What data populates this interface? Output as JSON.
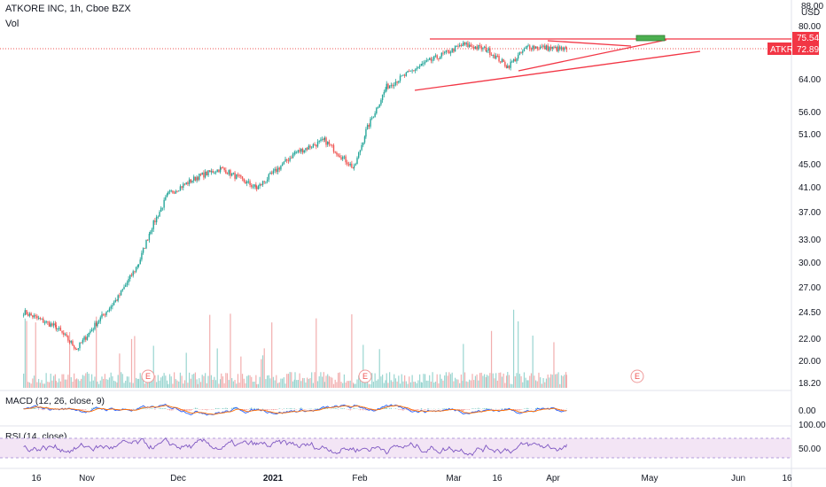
{
  "header": {
    "symbol_line": "ATKORE INC, 1h, Cboe BZX",
    "volume_label": "Vol"
  },
  "price_axis": {
    "top_clipped": "88.00",
    "currency": "USD",
    "ticks": [
      "80.00",
      "64.00",
      "56.00",
      "51.00",
      "45.00",
      "41.00",
      "37.00",
      "33.00",
      "30.00",
      "27.00",
      "24.50",
      "22.00",
      "20.00",
      "18.20"
    ],
    "resistance_tag": "75.54",
    "ticker_tag": "ATKR",
    "last_price_tag": "72.89"
  },
  "time_axis": {
    "labels": [
      "16",
      "Nov",
      "Dec",
      "2021",
      "Feb",
      "Mar",
      "16",
      "Apr",
      "May",
      "Jun",
      "16"
    ]
  },
  "macd": {
    "label": "MACD (12, 26, close, 9)",
    "tick": "0.00"
  },
  "rsi": {
    "label": "RSI (14, close)",
    "ticks": [
      "100.00",
      "50.00"
    ]
  },
  "earnings_marker": "E",
  "colors": {
    "up": "#26a69a",
    "down": "#ef5350",
    "trendline": "#f23645",
    "macd_line": "#2962ff",
    "signal_line": "#ff6d00",
    "rsi_line": "#7e57c2",
    "rsi_band": "#f3e5f5",
    "target_box": "#4caf50"
  },
  "chart_data": {
    "type": "candlestick",
    "title": "ATKORE INC, 1h, Cboe BZX",
    "y_scale": "log",
    "ylim": [
      18.2,
      88
    ],
    "price_path": [
      {
        "date": "2020-10-12",
        "close": 24.5
      },
      {
        "date": "2020-10-23",
        "close": 23.0
      },
      {
        "date": "2020-10-30",
        "close": 21.0
      },
      {
        "date": "2020-11-06",
        "close": 23.5
      },
      {
        "date": "2020-11-13",
        "close": 26.0
      },
      {
        "date": "2020-11-20",
        "close": 30.0
      },
      {
        "date": "2020-11-24",
        "close": 34.5
      },
      {
        "date": "2020-11-30",
        "close": 40.0
      },
      {
        "date": "2020-12-10",
        "close": 43.0
      },
      {
        "date": "2020-12-18",
        "close": 44.5
      },
      {
        "date": "2020-12-30",
        "close": 41.0
      },
      {
        "date": "2021-01-12",
        "close": 47.5
      },
      {
        "date": "2021-01-22",
        "close": 50.0
      },
      {
        "date": "2021-02-01",
        "close": 44.5
      },
      {
        "date": "2021-02-05",
        "close": 52.0
      },
      {
        "date": "2021-02-12",
        "close": 62.5
      },
      {
        "date": "2021-02-24",
        "close": 68.5
      },
      {
        "date": "2021-03-10",
        "close": 74.5
      },
      {
        "date": "2021-03-18",
        "close": 73.0
      },
      {
        "date": "2021-03-25",
        "close": 68.0
      },
      {
        "date": "2021-04-01",
        "close": 74.0
      },
      {
        "date": "2021-04-14",
        "close": 72.89
      }
    ],
    "annotations": {
      "resistance_level": 75.54,
      "last_price": 72.89,
      "earnings_dates": [
        "2020-11-20",
        "2021-02-04",
        "2021-05-05"
      ]
    },
    "macd_ylim": [
      -3,
      3
    ],
    "rsi_band": [
      30,
      70
    ]
  }
}
